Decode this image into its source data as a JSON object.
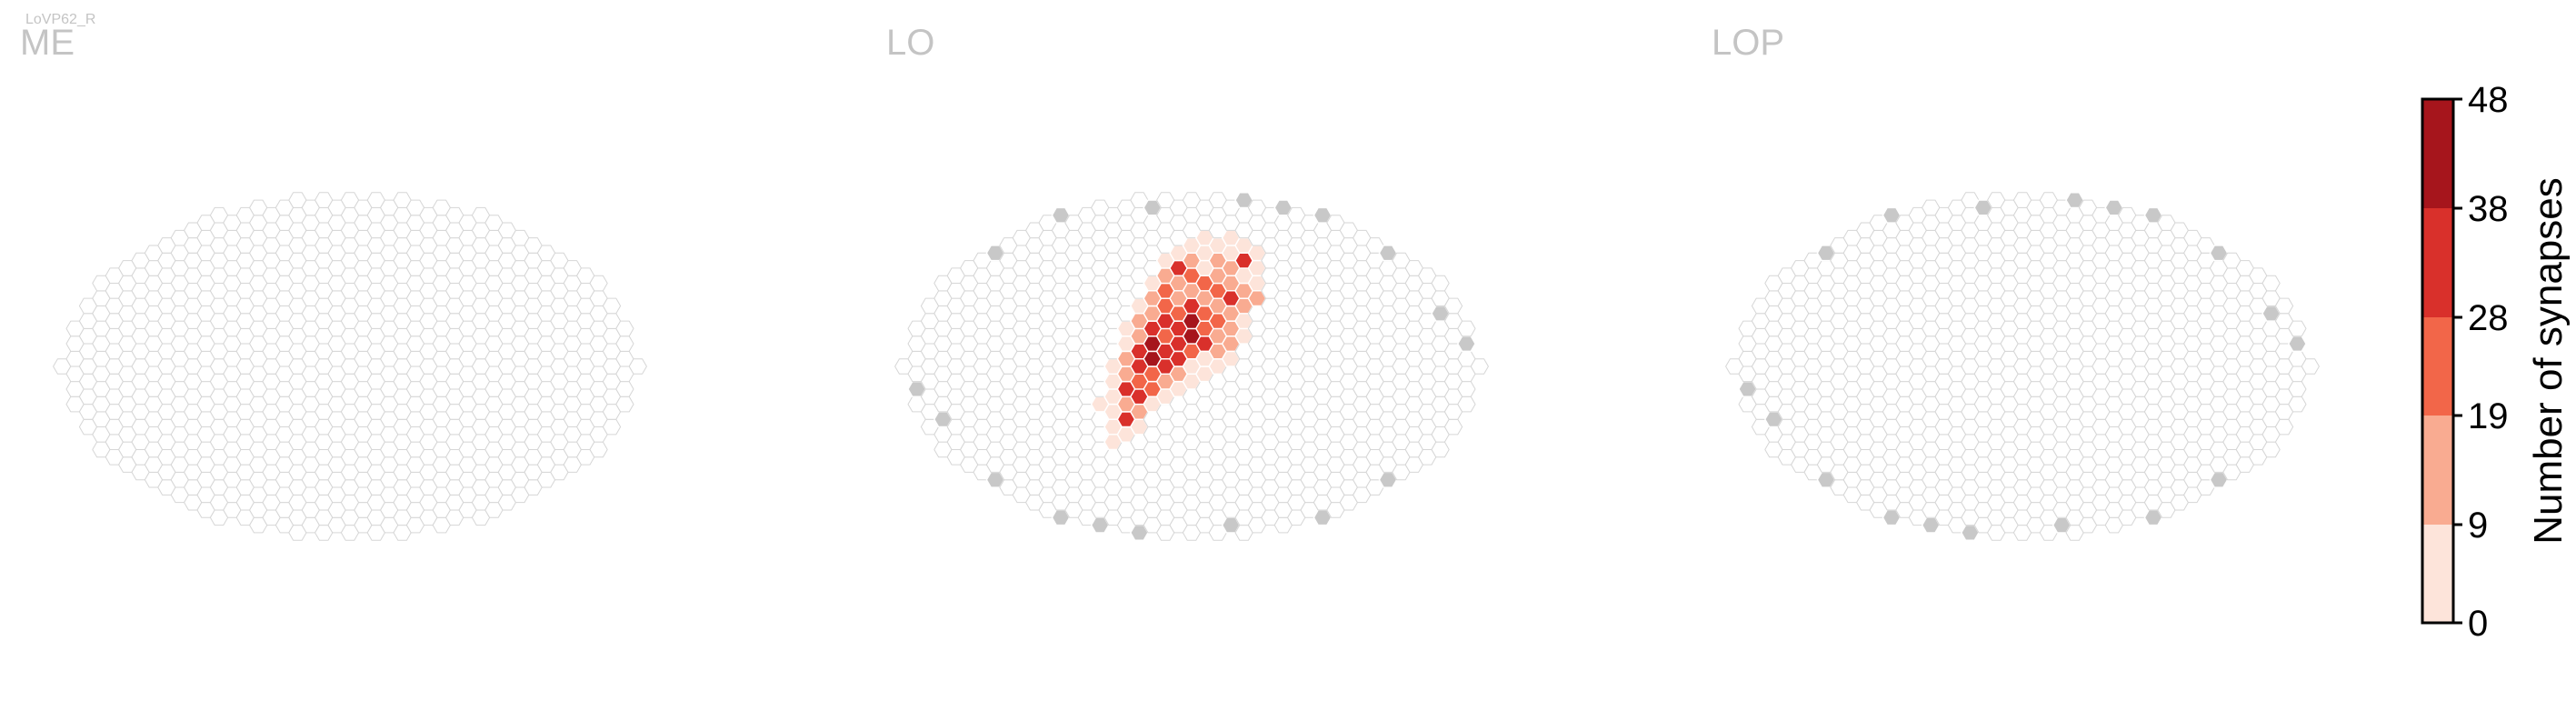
{
  "figure": {
    "cell_type_label": "LoVP62_R",
    "panels": [
      {
        "id": "me",
        "title": "ME"
      },
      {
        "id": "lo",
        "title": "LO"
      },
      {
        "id": "lop",
        "title": "LOP"
      }
    ]
  },
  "colors": {
    "empty_outline": "#d6d6d6",
    "boundary_fill": "#c8c8c8",
    "cell_stroke": "#ffffff",
    "title_gray": "#c4c4c4",
    "colorbar_bins": [
      "#fde4da",
      "#f9ab91",
      "#f26649",
      "#d9302b",
      "#a6151c"
    ]
  },
  "chart_data": {
    "type": "heatmap",
    "value_label": "Number of synapses",
    "colorbar_ticks": [
      "0",
      "9",
      "19",
      "28",
      "38",
      "48"
    ],
    "colorbar_range": [
      0,
      48
    ],
    "panels": [
      {
        "title": "ME",
        "data_columns": []
      },
      {
        "title": "LO",
        "data_columns": [
          {
            "hex": [
              -2,
              8
            ],
            "value": 4
          },
          {
            "hex": [
              -1,
              8
            ],
            "value": 5
          },
          {
            "hex": [
              0,
              8
            ],
            "value": 7
          },
          {
            "hex": [
              1,
              8
            ],
            "value": 3
          },
          {
            "hex": [
              -3,
              7
            ],
            "value": 4
          },
          {
            "hex": [
              -2,
              7
            ],
            "value": 12
          },
          {
            "hex": [
              -1,
              7
            ],
            "value": 30
          },
          {
            "hex": [
              0,
              7
            ],
            "value": 10
          },
          {
            "hex": [
              1,
              7
            ],
            "value": 6
          },
          {
            "hex": [
              2,
              7
            ],
            "value": 5
          },
          {
            "hex": [
              3,
              7
            ],
            "value": 4
          },
          {
            "hex": [
              -4,
              6
            ],
            "value": 6
          },
          {
            "hex": [
              -3,
              6
            ],
            "value": 14
          },
          {
            "hex": [
              -2,
              6
            ],
            "value": 22
          },
          {
            "hex": [
              -1,
              6
            ],
            "value": 11
          },
          {
            "hex": [
              0,
              6
            ],
            "value": 25
          },
          {
            "hex": [
              1,
              6
            ],
            "value": 9
          },
          {
            "hex": [
              2,
              6
            ],
            "value": 15
          },
          {
            "hex": [
              3,
              6
            ],
            "value": 8
          },
          {
            "hex": [
              4,
              6
            ],
            "value": 4
          },
          {
            "hex": [
              -5,
              5
            ],
            "value": 3
          },
          {
            "hex": [
              -4,
              5
            ],
            "value": 10
          },
          {
            "hex": [
              -3,
              5
            ],
            "value": 16
          },
          {
            "hex": [
              -2,
              5
            ],
            "value": 27
          },
          {
            "hex": [
              -1,
              5
            ],
            "value": 18
          },
          {
            "hex": [
              0,
              5
            ],
            "value": 13
          },
          {
            "hex": [
              1,
              5
            ],
            "value": 22
          },
          {
            "hex": [
              2,
              5
            ],
            "value": 12
          },
          {
            "hex": [
              3,
              5
            ],
            "value": 10
          },
          {
            "hex": [
              4,
              5
            ],
            "value": 35
          },
          {
            "hex": [
              5,
              5
            ],
            "value": 5
          },
          {
            "hex": [
              -5,
              4
            ],
            "value": 6
          },
          {
            "hex": [
              -4,
              4
            ],
            "value": 15
          },
          {
            "hex": [
              -3,
              4
            ],
            "value": 29
          },
          {
            "hex": [
              -2,
              4
            ],
            "value": 33
          },
          {
            "hex": [
              -1,
              4
            ],
            "value": 21
          },
          {
            "hex": [
              0,
              4
            ],
            "value": 31
          },
          {
            "hex": [
              1,
              4
            ],
            "value": 14
          },
          {
            "hex": [
              2,
              4
            ],
            "value": 26
          },
          {
            "hex": [
              3,
              4
            ],
            "value": 17
          },
          {
            "hex": [
              4,
              4
            ],
            "value": 9
          },
          {
            "hex": [
              5,
              4
            ],
            "value": 6
          },
          {
            "hex": [
              -6,
              3
            ],
            "value": 4
          },
          {
            "hex": [
              -5,
              3
            ],
            "value": 12
          },
          {
            "hex": [
              -4,
              3
            ],
            "value": 32
          },
          {
            "hex": [
              -3,
              3
            ],
            "value": 42
          },
          {
            "hex": [
              -2,
              3
            ],
            "value": 26
          },
          {
            "hex": [
              -1,
              3
            ],
            "value": 33
          },
          {
            "hex": [
              0,
              3
            ],
            "value": 40
          },
          {
            "hex": [
              1,
              3
            ],
            "value": 22
          },
          {
            "hex": [
              2,
              3
            ],
            "value": 18
          },
          {
            "hex": [
              3,
              3
            ],
            "value": 36
          },
          {
            "hex": [
              4,
              3
            ],
            "value": 14
          },
          {
            "hex": [
              5,
              3
            ],
            "value": 7
          },
          {
            "hex": [
              -6,
              2
            ],
            "value": 5
          },
          {
            "hex": [
              -5,
              2
            ],
            "value": 14
          },
          {
            "hex": [
              -4,
              2
            ],
            "value": 35
          },
          {
            "hex": [
              -3,
              2
            ],
            "value": 46
          },
          {
            "hex": [
              -2,
              2
            ],
            "value": 30
          },
          {
            "hex": [
              -1,
              2
            ],
            "value": 37
          },
          {
            "hex": [
              0,
              2
            ],
            "value": 45
          },
          {
            "hex": [
              1,
              2
            ],
            "value": 28
          },
          {
            "hex": [
              2,
              2
            ],
            "value": 24
          },
          {
            "hex": [
              3,
              2
            ],
            "value": 13
          },
          {
            "hex": [
              4,
              2
            ],
            "value": 16
          },
          {
            "hex": [
              5,
              2
            ],
            "value": 10
          },
          {
            "hex": [
              -7,
              1
            ],
            "value": 5
          },
          {
            "hex": [
              -6,
              1
            ],
            "value": 8
          },
          {
            "hex": [
              -5,
              1
            ],
            "value": 29
          },
          {
            "hex": [
              -4,
              1
            ],
            "value": 27
          },
          {
            "hex": [
              -3,
              1
            ],
            "value": 23
          },
          {
            "hex": [
              -2,
              1
            ],
            "value": 34
          },
          {
            "hex": [
              -1,
              1
            ],
            "value": 38
          },
          {
            "hex": [
              0,
              1
            ],
            "value": 24
          },
          {
            "hex": [
              1,
              1
            ],
            "value": 30
          },
          {
            "hex": [
              2,
              1
            ],
            "value": 15
          },
          {
            "hex": [
              3,
              1
            ],
            "value": 12
          },
          {
            "hex": [
              4,
              1
            ],
            "value": 9
          },
          {
            "hex": [
              -6,
              0
            ],
            "value": 7
          },
          {
            "hex": [
              -5,
              0
            ],
            "value": 18
          },
          {
            "hex": [
              -4,
              0
            ],
            "value": 33
          },
          {
            "hex": [
              -3,
              0
            ],
            "value": 20
          },
          {
            "hex": [
              -2,
              0
            ],
            "value": 11
          },
          {
            "hex": [
              -1,
              0
            ],
            "value": 16
          },
          {
            "hex": [
              0,
              0
            ],
            "value": 6
          },
          {
            "hex": [
              1,
              0
            ],
            "value": 8
          },
          {
            "hex": [
              2,
              0
            ],
            "value": 13
          },
          {
            "hex": [
              3,
              0
            ],
            "value": 17
          },
          {
            "hex": [
              4,
              0
            ],
            "value": 5
          },
          {
            "hex": [
              -6,
              -1
            ],
            "value": 4
          },
          {
            "hex": [
              -5,
              -1
            ],
            "value": 31
          },
          {
            "hex": [
              -4,
              -1
            ],
            "value": 12
          },
          {
            "hex": [
              -3,
              -1
            ],
            "value": 9
          },
          {
            "hex": [
              -2,
              -1
            ],
            "value": 5
          },
          {
            "hex": [
              -1,
              -1
            ],
            "value": 4
          },
          {
            "hex": [
              0,
              -1
            ],
            "value": 3
          },
          {
            "hex": [
              1,
              -1
            ],
            "value": 6
          },
          {
            "hex": [
              2,
              -1
            ],
            "value": 8
          },
          {
            "hex": [
              3,
              -1
            ],
            "value": 4
          },
          {
            "hex": [
              -6,
              -2
            ],
            "value": 3
          },
          {
            "hex": [
              -5,
              -2
            ],
            "value": 5
          },
          {
            "hex": [
              -4,
              -2
            ],
            "value": 3
          }
        ]
      },
      {
        "title": "LOP",
        "data_columns": []
      }
    ]
  }
}
